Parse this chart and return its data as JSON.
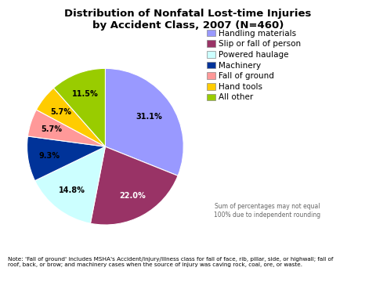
{
  "title": "Distribution of Nonfatal Lost-time Injuries\nby Accident Class, 2007 (N=460)",
  "slices": [
    31.1,
    22.0,
    14.8,
    9.3,
    5.7,
    5.7,
    11.5
  ],
  "labels": [
    "31.1%",
    "22.0%",
    "14.8%",
    "9.3%",
    "5.7%",
    "5.7%",
    "11.5%"
  ],
  "legend_labels": [
    "Handling materials",
    "Slip or fall of person",
    "Powered haulage",
    "Machinery",
    "Fall of ground",
    "Hand tools",
    "All other"
  ],
  "colors": [
    "#9999FF",
    "#993366",
    "#CCFFFF",
    "#003399",
    "#FF9999",
    "#FFCC00",
    "#99CC00"
  ],
  "label_colors": [
    "black",
    "white",
    "black",
    "black",
    "black",
    "black",
    "black"
  ],
  "startangle": 90,
  "note": "Note: 'Fall of ground' includes MSHA's Accident/Injury/Illness class for fall of face, rib, pillar, side, or highwall; fall of\nroof, back, or brow; and machinery cases when the source of injury was caving rock, coal, ore, or waste.",
  "subnote": "Sum of percentages may not equal\n100% due to independent rounding",
  "background_color": "#FFFFFF"
}
